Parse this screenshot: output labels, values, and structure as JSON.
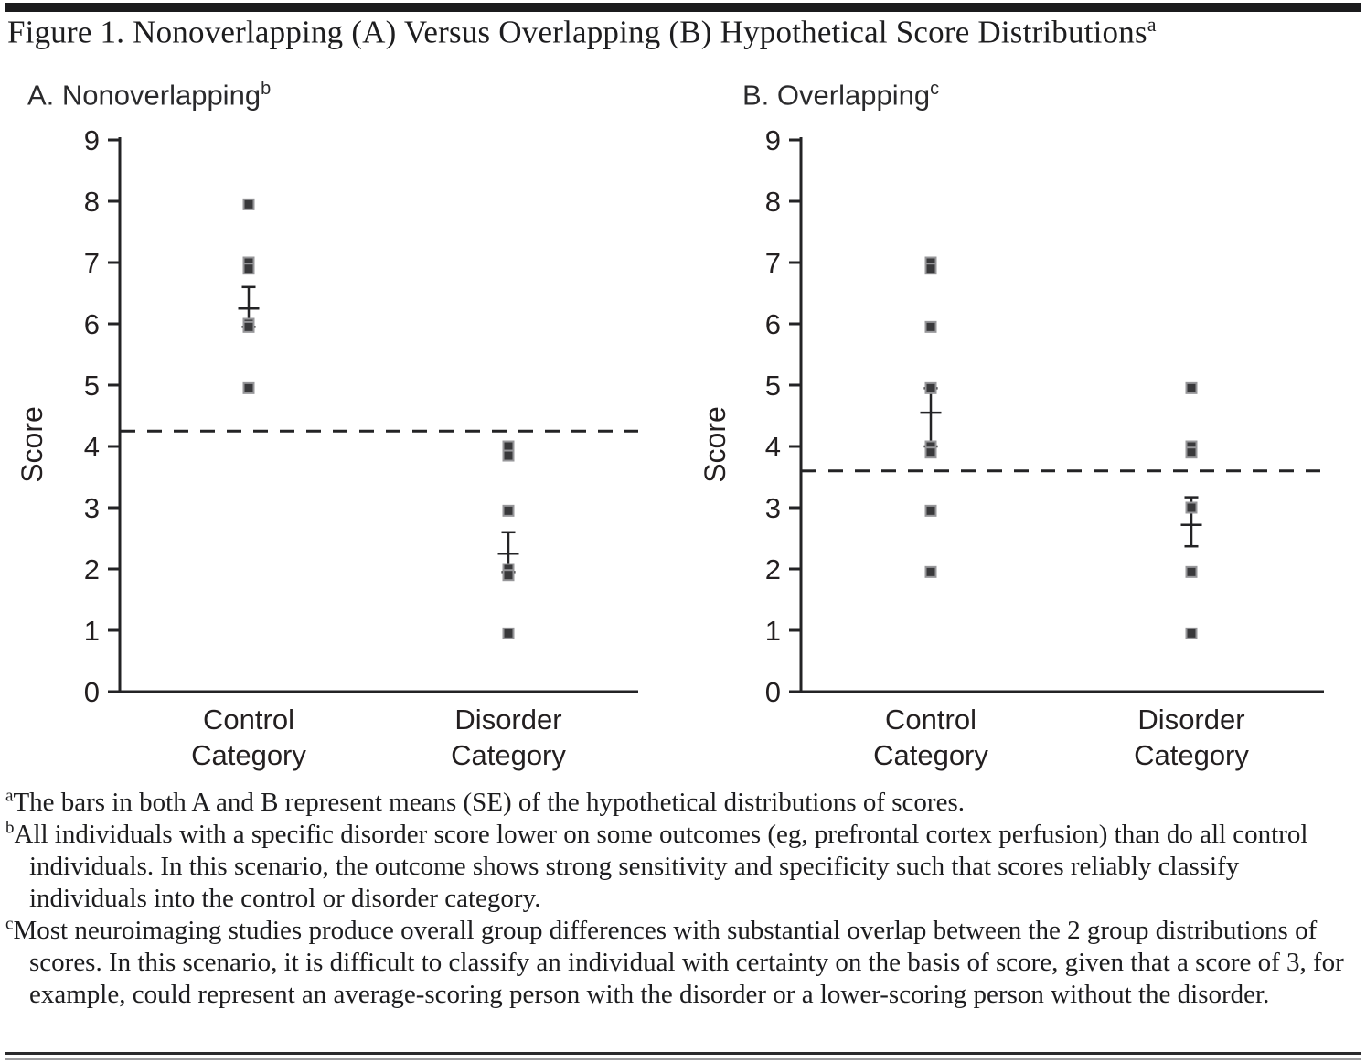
{
  "title": {
    "text": "Figure 1. Nonoverlapping (A) Versus Overlapping (B) Hypothetical Score Distributions",
    "superscript": "a"
  },
  "chart_data": [
    {
      "type": "scatter",
      "panel": "A",
      "title": "A. Nonoverlapping",
      "title_superscript": "b",
      "ylabel": "Score",
      "ylim": [
        0,
        9
      ],
      "yticks": [
        0,
        1,
        2,
        3,
        4,
        5,
        6,
        7,
        8,
        9
      ],
      "grid": false,
      "threshold_dashed_line": 4.25,
      "categories": [
        {
          "line1": "Control",
          "line2": "Category"
        },
        {
          "line1": "Disorder",
          "line2": "Category"
        }
      ],
      "series": [
        {
          "name": "Control Category",
          "points": [
            7.95,
            7.0,
            6.9,
            6.0,
            5.95,
            4.95
          ],
          "mean": 6.25,
          "se_high": 6.6,
          "se_low": 5.95
        },
        {
          "name": "Disorder Category",
          "points": [
            4.0,
            3.85,
            2.95,
            2.0,
            1.9,
            0.95
          ],
          "mean": 2.25,
          "se_high": 2.6,
          "se_low": 1.95
        }
      ]
    },
    {
      "type": "scatter",
      "panel": "B",
      "title": "B. Overlapping",
      "title_superscript": "c",
      "ylabel": "Score",
      "ylim": [
        0,
        9
      ],
      "yticks": [
        0,
        1,
        2,
        3,
        4,
        5,
        6,
        7,
        8,
        9
      ],
      "grid": false,
      "threshold_dashed_line": 3.6,
      "categories": [
        {
          "line1": "Control",
          "line2": "Category"
        },
        {
          "line1": "Disorder",
          "line2": "Category"
        }
      ],
      "series": [
        {
          "name": "Control Category",
          "points": [
            7.0,
            6.9,
            5.95,
            4.95,
            4.0,
            3.9,
            2.95,
            1.95
          ],
          "mean": 4.55,
          "se_high": 4.95,
          "se_low": 4.0
        },
        {
          "name": "Disorder Category",
          "points": [
            4.95,
            4.0,
            3.9,
            3.0,
            1.95,
            0.95
          ],
          "mean": 2.72,
          "se_high": 3.17,
          "se_low": 2.37
        }
      ]
    }
  ],
  "footnotes": [
    {
      "marker": "a",
      "text": "The bars in both A and B represent means (SE) of the hypothetical distributions of scores."
    },
    {
      "marker": "b",
      "text": "All individuals with a specific disorder score lower on some outcomes (eg, prefrontal cortex perfusion) than do all control individuals. In this scenario, the outcome shows strong sensitivity and specificity such that scores reliably classify individuals into the control or disorder category."
    },
    {
      "marker": "c",
      "text": "Most neuroimaging studies produce overall group differences with substantial overlap between the 2 group distributions of scores. In this scenario, it is difficult to classify an individual with certainty on the basis of score, given that a score of 3, for example, could represent an average-scoring person with the disorder or a lower-scoring person without the disorder."
    }
  ],
  "colors": {
    "marker_fill": "#39393b",
    "marker_stroke": "#97979a",
    "line": "#232325",
    "rule": "#1b1b1d"
  }
}
